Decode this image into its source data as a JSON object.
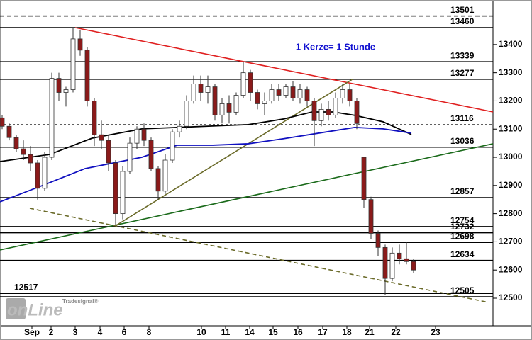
{
  "chart_data": {
    "type": "candlestick",
    "annotation": "1 Kerze= 1 Stunde",
    "logo": [
      "Tradesignal®",
      "onLine"
    ],
    "x": [
      0,
      1,
      2,
      3,
      4,
      5,
      6,
      7,
      8,
      9,
      10,
      11,
      12,
      13,
      14,
      15,
      16,
      17,
      18,
      19,
      20,
      21,
      22,
      23,
      24,
      25,
      26,
      27,
      28,
      29,
      30,
      31,
      32,
      33,
      34,
      35,
      36,
      37,
      38,
      39,
      40,
      41,
      42,
      43,
      44,
      45,
      46,
      47,
      48,
      49,
      50,
      51,
      52,
      53,
      54,
      55,
      56,
      57,
      58
    ],
    "open": [
      13140,
      13110,
      13070,
      13030,
      13010,
      12980,
      12890,
      13000,
      13280,
      13230,
      13240,
      13420,
      13380,
      13200,
      13080,
      13060,
      12980,
      12800,
      12950,
      13050,
      13100,
      13060,
      12960,
      12880,
      12990,
      13090,
      13110,
      13200,
      13260,
      13230,
      13250,
      13150,
      13190,
      13160,
      13220,
      13300,
      13230,
      13190,
      13200,
      13240,
      13220,
      13250,
      13210,
      13240,
      13200,
      13130,
      13170,
      13150,
      13210,
      13240,
      13200,
      13000,
      12850,
      12730,
      12680,
      12570,
      12660,
      12640,
      12630
    ],
    "high": [
      13150,
      13120,
      13080,
      13060,
      13040,
      12990,
      13020,
      13300,
      13300,
      13250,
      13460,
      13450,
      13390,
      13210,
      13130,
      13080,
      12990,
      12970,
      13070,
      13110,
      13120,
      13070,
      12970,
      13010,
      13100,
      13130,
      13220,
      13290,
      13290,
      13290,
      13260,
      13210,
      13220,
      13230,
      13340,
      13310,
      13240,
      13230,
      13260,
      13260,
      13260,
      13270,
      13260,
      13250,
      13210,
      13190,
      13200,
      13230,
      13260,
      13260,
      13210,
      13000,
      12860,
      12740,
      12690,
      12680,
      12690,
      12700,
      12640
    ],
    "low": [
      13100,
      13060,
      13020,
      12990,
      12950,
      12850,
      12880,
      12990,
      13200,
      13180,
      13230,
      13360,
      13180,
      13040,
      13030,
      12950,
      12760,
      12780,
      12940,
      13030,
      13040,
      12950,
      12850,
      12870,
      12980,
      13070,
      13100,
      13190,
      13200,
      13190,
      13130,
      13120,
      13120,
      13150,
      13210,
      13200,
      13170,
      13150,
      13190,
      13200,
      13210,
      13200,
      13190,
      13180,
      13040,
      13110,
      13130,
      13140,
      13190,
      13180,
      13100,
      12820,
      12710,
      12650,
      12510,
      12560,
      12620,
      12620,
      12590
    ],
    "close": [
      13110,
      13070,
      13030,
      13010,
      12980,
      12890,
      13000,
      13280,
      13230,
      13240,
      13420,
      13380,
      13200,
      13080,
      13060,
      12980,
      12800,
      12950,
      13050,
      13100,
      13060,
      12960,
      12880,
      12990,
      13090,
      13110,
      13200,
      13260,
      13230,
      13250,
      13150,
      13190,
      13160,
      13220,
      13300,
      13230,
      13190,
      13200,
      13240,
      13220,
      13250,
      13210,
      13240,
      13200,
      13130,
      13170,
      13150,
      13210,
      13240,
      13200,
      13120,
      12850,
      12730,
      12680,
      12570,
      12660,
      12640,
      12630,
      12600
    ],
    "up_color": "#ffffff",
    "down_color": "#8b1a1a",
    "wick_color": "#333333",
    "xlim": [
      -0.3,
      69.2
    ],
    "ylim": [
      12407,
      13558
    ],
    "yticks": [
      12500,
      12600,
      12700,
      12800,
      12900,
      13000,
      13100,
      13200,
      13300,
      13400
    ],
    "xticks": [
      {
        "value": 4.2,
        "label": "Sep"
      },
      {
        "value": 6.9,
        "label": "2"
      },
      {
        "value": 10.3,
        "label": "3"
      },
      {
        "value": 13.8,
        "label": "4"
      },
      {
        "value": 17.2,
        "label": "6"
      },
      {
        "value": 20.7,
        "label": "8"
      },
      {
        "value": 28.1,
        "label": "10"
      },
      {
        "value": 31.5,
        "label": "11"
      },
      {
        "value": 34.9,
        "label": "14"
      },
      {
        "value": 38.2,
        "label": "15"
      },
      {
        "value": 41.7,
        "label": "16"
      },
      {
        "value": 45.2,
        "label": "17"
      },
      {
        "value": 48.6,
        "label": "18"
      },
      {
        "value": 51.8,
        "label": "21"
      },
      {
        "value": 55.5,
        "label": "22"
      },
      {
        "value": 61.1,
        "label": "23"
      }
    ],
    "levels": [
      {
        "value": 13501,
        "style": "dashed"
      },
      {
        "value": 13460,
        "style": "solid"
      },
      {
        "value": 13339,
        "style": "solid"
      },
      {
        "value": 13277,
        "style": "solid"
      },
      {
        "value": 13116,
        "style": "dotted"
      },
      {
        "value": 13036,
        "style": "solid"
      },
      {
        "value": 12857,
        "style": "solid"
      },
      {
        "value": 12754,
        "style": "solid"
      },
      {
        "value": 12732,
        "style": "solid"
      },
      {
        "value": 12698,
        "style": "solid"
      },
      {
        "value": 12634,
        "style": "solid"
      },
      {
        "value": 12517,
        "style": "solid",
        "label_side": "left"
      },
      {
        "value": 12505,
        "style": "solid"
      }
    ],
    "trendlines": [
      {
        "color": "#e02020",
        "style": "solid",
        "x": [
          10.3,
          69.2
        ],
        "values": [
          13460,
          13161
        ]
      },
      {
        "color": "#1a6a1a",
        "style": "solid",
        "x": [
          -0.3,
          69.2
        ],
        "values": [
          12671,
          13048
        ]
      },
      {
        "color": "#6b6b2a",
        "style": "solid",
        "x": [
          16,
          49.4
        ],
        "values": [
          12757,
          13277
        ]
      },
      {
        "color": "#6b6b2a",
        "style": "dashed",
        "x": [
          3.9,
          68.2
        ],
        "values": [
          12819,
          12487
        ]
      }
    ],
    "averages": [
      {
        "color": "#000000",
        "x": [
          -0.3,
          6.7,
          12.7,
          19.7,
          24.7,
          29.7,
          34.7,
          39.7,
          43.7,
          46.7,
          49.7,
          53.7,
          57.7
        ],
        "values": [
          12985,
          13010,
          13068,
          13101,
          13106,
          13111,
          13116,
          13136,
          13161,
          13161,
          13149,
          13126,
          13081
        ]
      },
      {
        "color": "#1010c0",
        "x": [
          -0.3,
          5.7,
          11.7,
          16.7,
          19.7,
          24.7,
          29.7,
          34.7,
          39.7,
          44.7,
          49.7,
          53.7,
          57.7
        ],
        "values": [
          12842,
          12900,
          12960,
          12985,
          13000,
          13043,
          13043,
          13048,
          13066,
          13086,
          13106,
          13101,
          13086
        ]
      }
    ]
  }
}
